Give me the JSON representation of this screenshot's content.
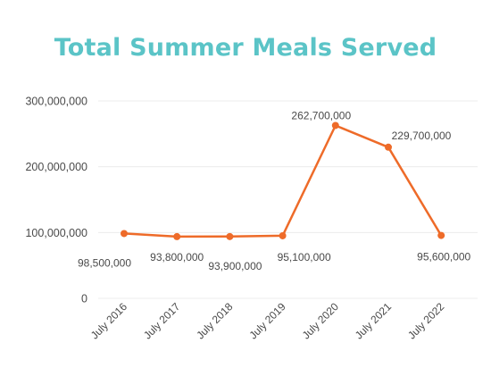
{
  "colors": {
    "title": "#5bc4c7",
    "line": "#ee6b29",
    "grid": "#ececec",
    "text": "#4a4a4a"
  },
  "chart_data": {
    "type": "line",
    "title": "Total Summer Meals Served",
    "xlabel": "",
    "ylabel": "",
    "categories": [
      "July 2016",
      "July 2017",
      "July 2018",
      "July 2019",
      "July 2020",
      "July 2021",
      "July 2022"
    ],
    "series": [
      {
        "values": [
          98500000,
          93800000,
          93900000,
          95100000,
          262700000,
          229700000,
          95600000
        ],
        "data_labels": [
          "98,500,000",
          "93,800,000",
          "93,900,000",
          "95,100,000",
          "262,700,000",
          "229,700,000",
          "95,600,000"
        ]
      }
    ],
    "ylim": [
      0,
      300000000
    ],
    "yticks": [
      0,
      100000000,
      200000000,
      300000000
    ],
    "ytick_labels": [
      "0",
      "100,000,000",
      "200,000,000",
      "300,000,000"
    ],
    "grid": true,
    "legend": "none"
  }
}
